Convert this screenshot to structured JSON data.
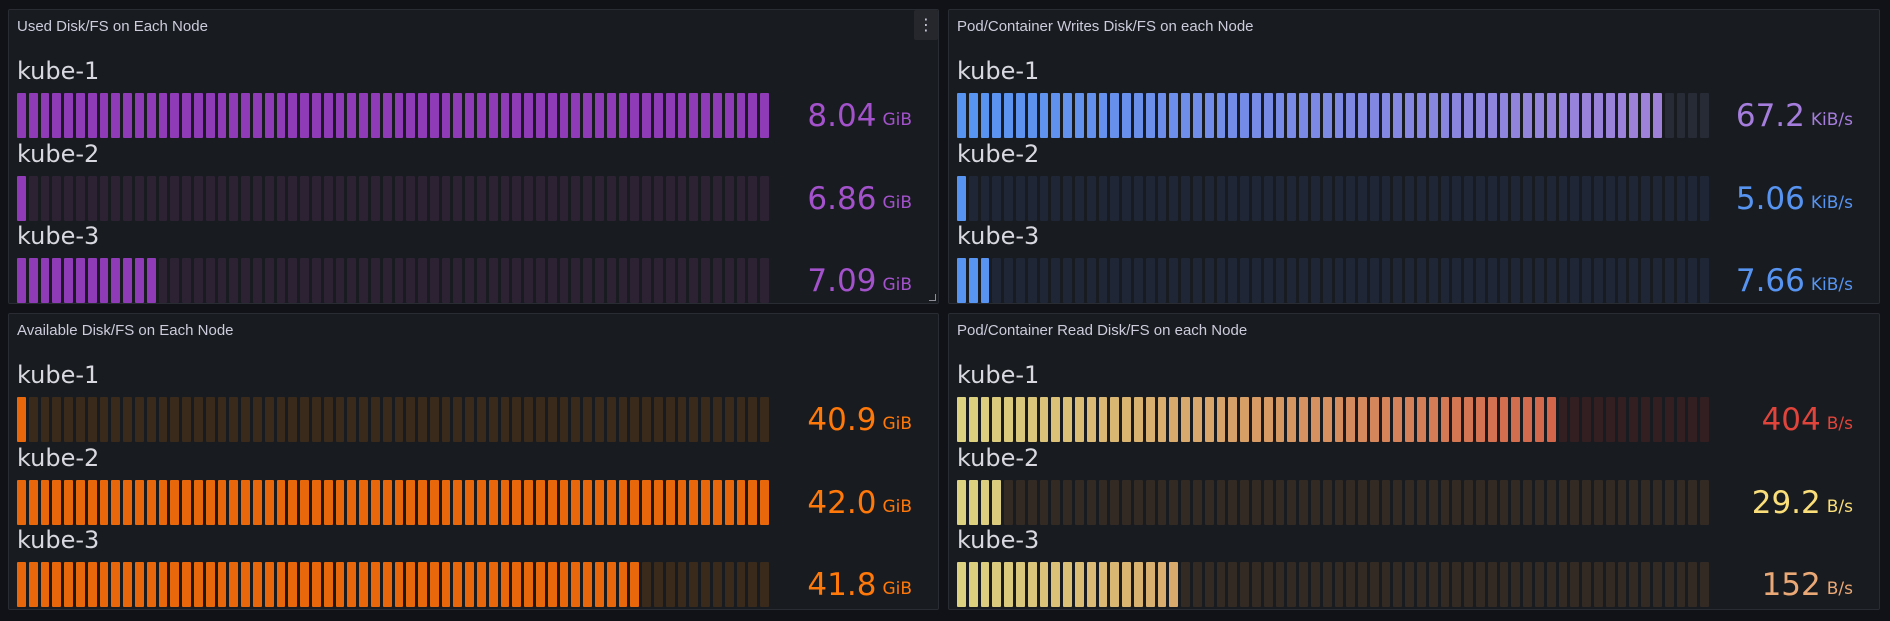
{
  "panels": [
    {
      "title": "Used Disk/FS on Each Node",
      "has_menu": true,
      "menu_icon": "more-vertical-icon",
      "rows": [
        {
          "name": "kube-1",
          "value": "8.04",
          "unit": "GiB",
          "fill": 1.0,
          "value_color": "#a352cc",
          "colors": [
            "#8f3bb8",
            "#8f3bb8"
          ],
          "empty": "#2c2233"
        },
        {
          "name": "kube-2",
          "value": "6.86",
          "unit": "GiB",
          "fill": 0.02,
          "value_color": "#a352cc",
          "colors": [
            "#8f3bb8",
            "#8f3bb8"
          ],
          "empty": "#2c2233"
        },
        {
          "name": "kube-3",
          "value": "7.09",
          "unit": "GiB",
          "fill": 0.19,
          "value_color": "#a352cc",
          "colors": [
            "#8f3bb8",
            "#8f3bb8"
          ],
          "empty": "#2c2233"
        }
      ]
    },
    {
      "title": "Pod/Container Writes Disk/FS on each Node",
      "has_menu": false,
      "rows": [
        {
          "name": "kube-1",
          "value": "67.2",
          "unit": "KiB/s",
          "fill": 0.94,
          "value_color": "#a57ddc",
          "colors": [
            "#5794f2",
            "#a47fd6"
          ],
          "empty": "#272b36"
        },
        {
          "name": "kube-2",
          "value": "5.06",
          "unit": "KiB/s",
          "fill": 0.02,
          "value_color": "#5794f2",
          "colors": [
            "#5794f2",
            "#a47fd6"
          ],
          "empty": "#1f2636"
        },
        {
          "name": "kube-3",
          "value": "7.66",
          "unit": "KiB/s",
          "fill": 0.05,
          "value_color": "#5794f2",
          "colors": [
            "#5794f2",
            "#a47fd6"
          ],
          "empty": "#1f2636"
        }
      ]
    },
    {
      "title": "Available Disk/FS on Each Node",
      "has_menu": false,
      "rows": [
        {
          "name": "kube-1",
          "value": "40.9",
          "unit": "GiB",
          "fill": 0.02,
          "value_color": "#ff780a",
          "colors": [
            "#e8670b",
            "#e8670b"
          ],
          "empty": "#3a2a1c"
        },
        {
          "name": "kube-2",
          "value": "42.0",
          "unit": "GiB",
          "fill": 1.0,
          "value_color": "#ff780a",
          "colors": [
            "#e8670b",
            "#e8670b"
          ],
          "empty": "#3a2a1c"
        },
        {
          "name": "kube-3",
          "value": "41.8",
          "unit": "GiB",
          "fill": 0.83,
          "value_color": "#ff780a",
          "colors": [
            "#e8670b",
            "#e8670b"
          ],
          "empty": "#3a2a1c"
        }
      ]
    },
    {
      "title": "Pod/Container Read Disk/FS on each Node",
      "has_menu": false,
      "rows": [
        {
          "name": "kube-1",
          "value": "404",
          "unit": "B/s",
          "fill": 0.79,
          "value_color": "#e0443b",
          "colors": [
            "#dcd280",
            "#cf4a3d"
          ],
          "empty": "#331f21"
        },
        {
          "name": "kube-2",
          "value": "29.2",
          "unit": "B/s",
          "fill": 0.06,
          "value_color": "#fade7a",
          "colors": [
            "#dcd280",
            "#cf4a3d"
          ],
          "empty": "#332a24"
        },
        {
          "name": "kube-3",
          "value": "152",
          "unit": "B/s",
          "fill": 0.3,
          "value_color": "#eaa876",
          "colors": [
            "#dcd280",
            "#cf4a3d"
          ],
          "empty": "#332a24"
        }
      ]
    }
  ]
}
